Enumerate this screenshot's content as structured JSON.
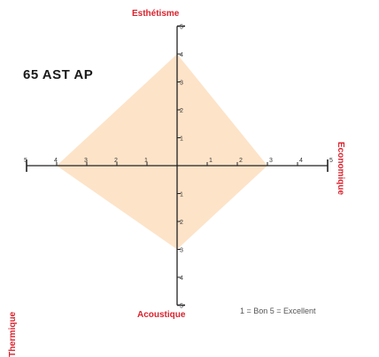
{
  "chart_data": {
    "type": "radar",
    "title": "65 AST AP",
    "axes": [
      {
        "name": "Esthétisme",
        "direction": "up",
        "value": 4
      },
      {
        "name": "Economique",
        "direction": "right",
        "value": 3
      },
      {
        "name": "Acoustique",
        "direction": "down",
        "value": 3
      },
      {
        "name": "Thermique",
        "direction": "left",
        "value": 4
      }
    ],
    "scale": {
      "min": 0,
      "max": 5,
      "ticks": [
        1,
        2,
        3,
        4,
        5
      ]
    },
    "legend": "1 = Bon   5 = Excellent",
    "fill_color": "#fde3c8",
    "label_color": "#d9232e"
  }
}
